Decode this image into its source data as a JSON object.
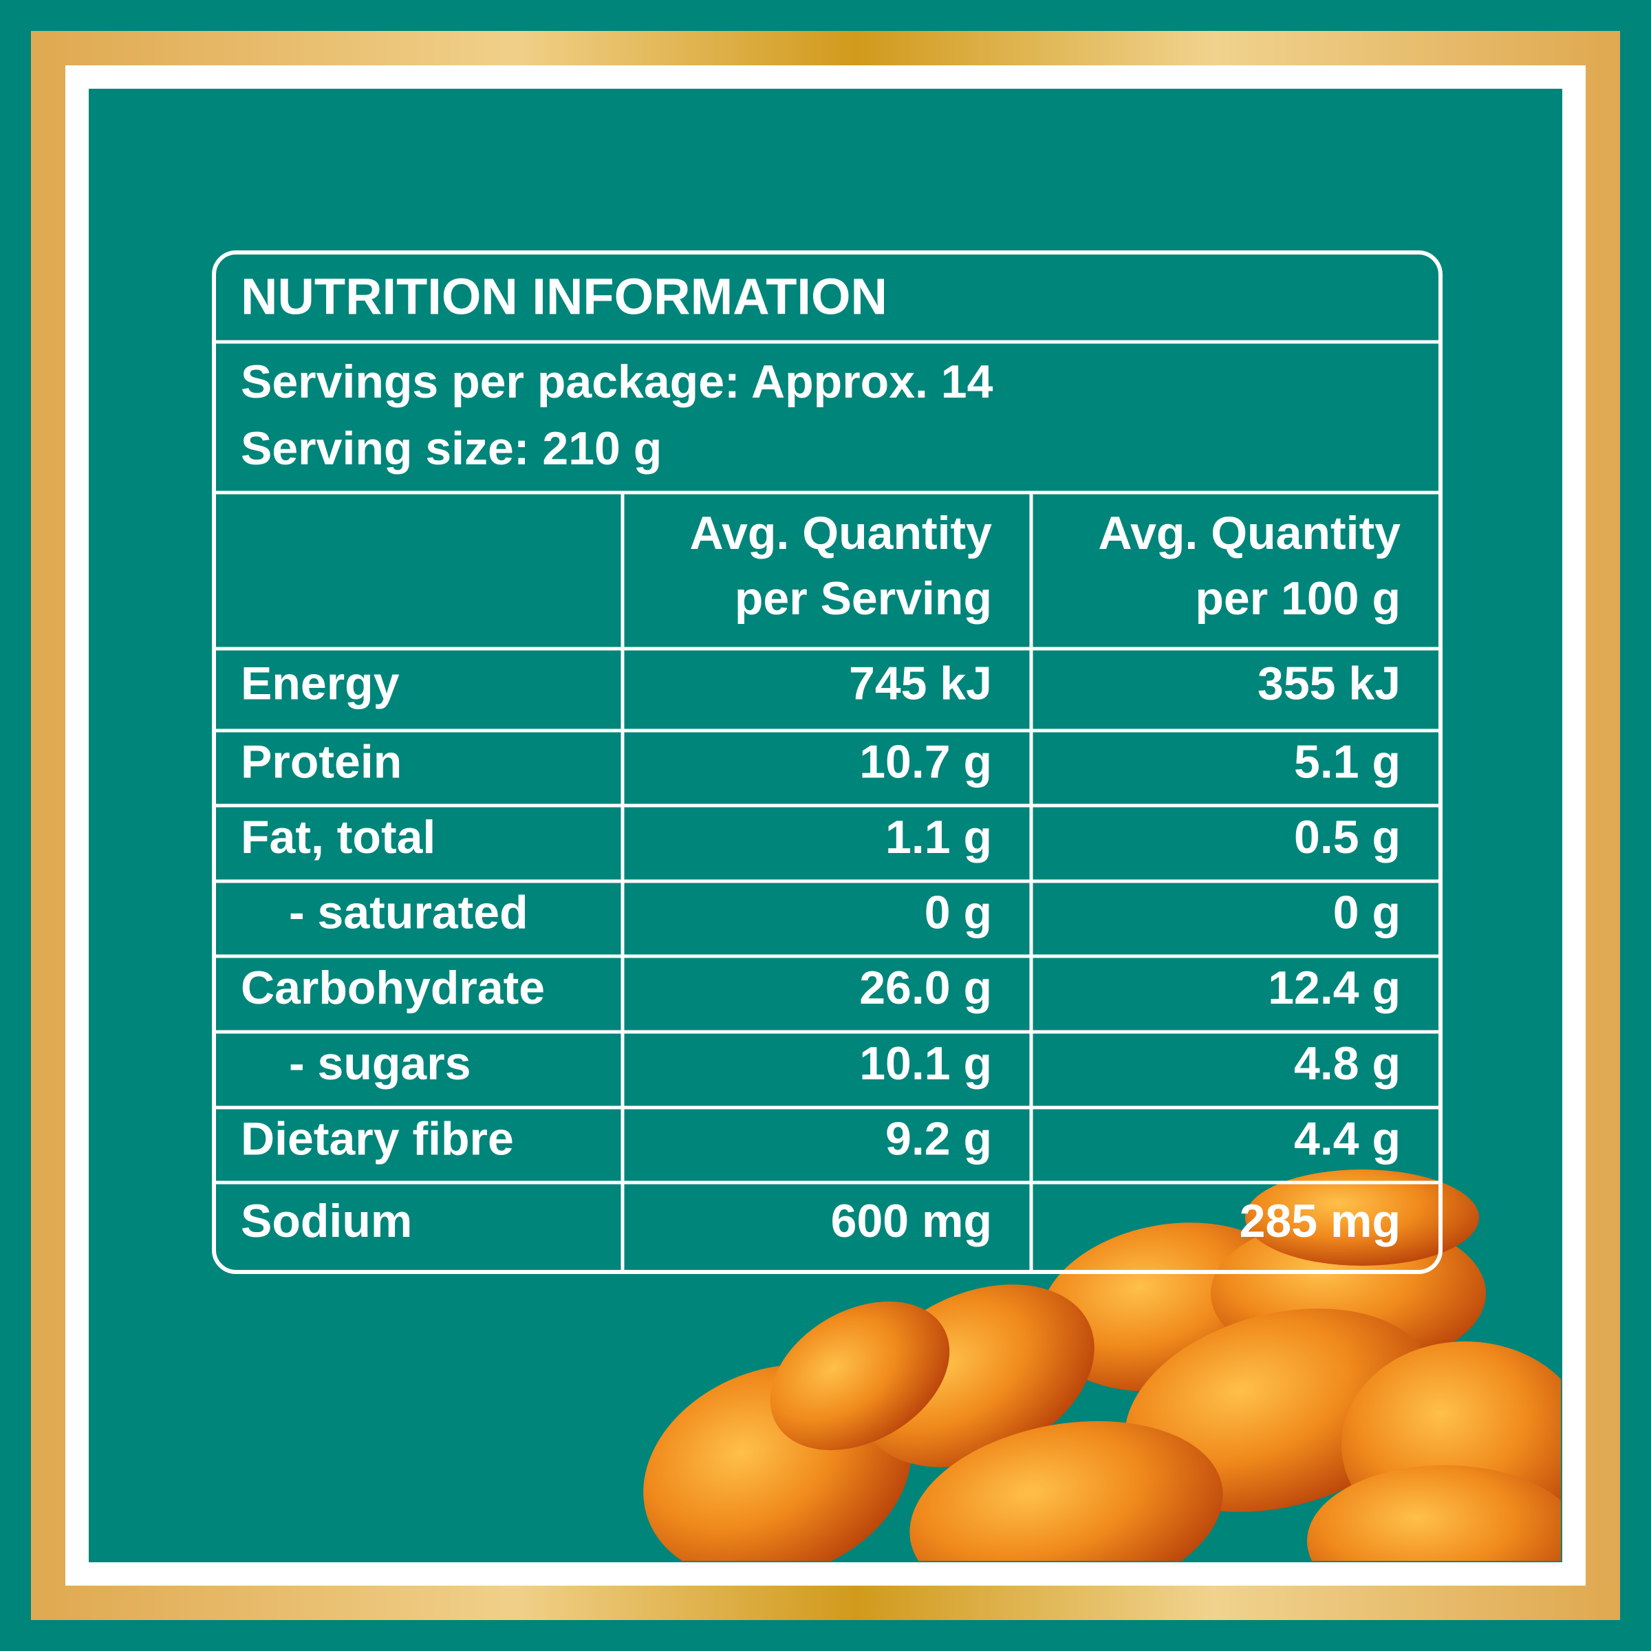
{
  "header": {
    "title": "NUTRITION INFORMATION",
    "servings_per_package": "Servings per package: Approx. 14",
    "serving_size": "Serving size: 210 g"
  },
  "table": {
    "columns": [
      [
        "Avg. Quantity",
        "per Serving"
      ],
      [
        "Avg. Quantity",
        "per 100 g"
      ]
    ],
    "rows": [
      [
        "Energy",
        "745 kJ",
        "355 kJ"
      ],
      [
        "Protein",
        "10.7 g",
        "5.1 g"
      ],
      [
        "Fat, total",
        "1.1 g",
        "0.5 g"
      ],
      [
        "- saturated",
        "0 g",
        "0 g"
      ],
      [
        "Carbohydrate",
        "26.0 g",
        "12.4 g"
      ],
      [
        "- sugars",
        "10.1 g",
        "4.8 g"
      ],
      [
        "Dietary fibre",
        "9.2 g",
        "4.4 g"
      ],
      [
        "Sodium",
        "600 mg",
        "285 mg"
      ]
    ]
  }
}
